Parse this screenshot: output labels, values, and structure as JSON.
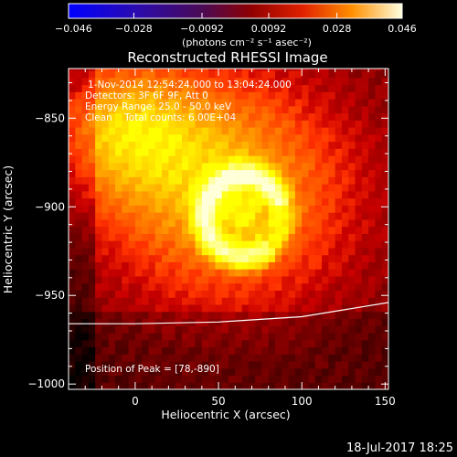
{
  "chart_data": {
    "type": "heatmap",
    "title": "Reconstructed RHESSI Image",
    "xlabel": "Heliocentric X (arcsec)",
    "ylabel": "Heliocentric Y (arcsec)",
    "xlim": [
      -40,
      152
    ],
    "ylim": [
      -1003,
      -822
    ],
    "x_ticks": [
      0,
      50,
      100,
      150
    ],
    "y_ticks": [
      -850,
      -900,
      -950,
      -1000
    ],
    "colorbar": {
      "min": -0.046,
      "max": 0.046,
      "colormap": "hot",
      "tick_values": [
        -0.046,
        -0.028,
        -0.0092,
        0.0092,
        0.028,
        0.046
      ],
      "tick_labels": [
        "−0.046",
        "−0.028",
        "−0.0092",
        "0.0092",
        "0.028",
        "0.046"
      ],
      "unit_label": "(photons cm⁻² s⁻¹ asec⁻²)"
    },
    "annotations": [
      "1-Nov-2014 12:54:24.000 to 13:04:24.000",
      "Detectors: 3F 6F 9F, Att 0",
      "Energy Range: 25.0 - 50.0 keV",
      "Clean    Total counts: 6.00E+04"
    ],
    "peak_label": "Position of Peak = [78,-890]",
    "peak": [
      78,
      -890
    ],
    "source": {
      "ring_center": [
        65,
        -905
      ],
      "ring_radius": 23,
      "ring_gap_direction": "east",
      "peak_value": 0.046
    },
    "limb_curve": [
      [
        -40,
        -966
      ],
      [
        0,
        -966
      ],
      [
        50,
        -965
      ],
      [
        100,
        -962
      ],
      [
        152,
        -954
      ]
    ],
    "grid": false
  },
  "footer": {
    "date": "18-Jul-2017 18:25"
  },
  "colors": {
    "background": "#000000",
    "foreground": "#ffffff"
  }
}
